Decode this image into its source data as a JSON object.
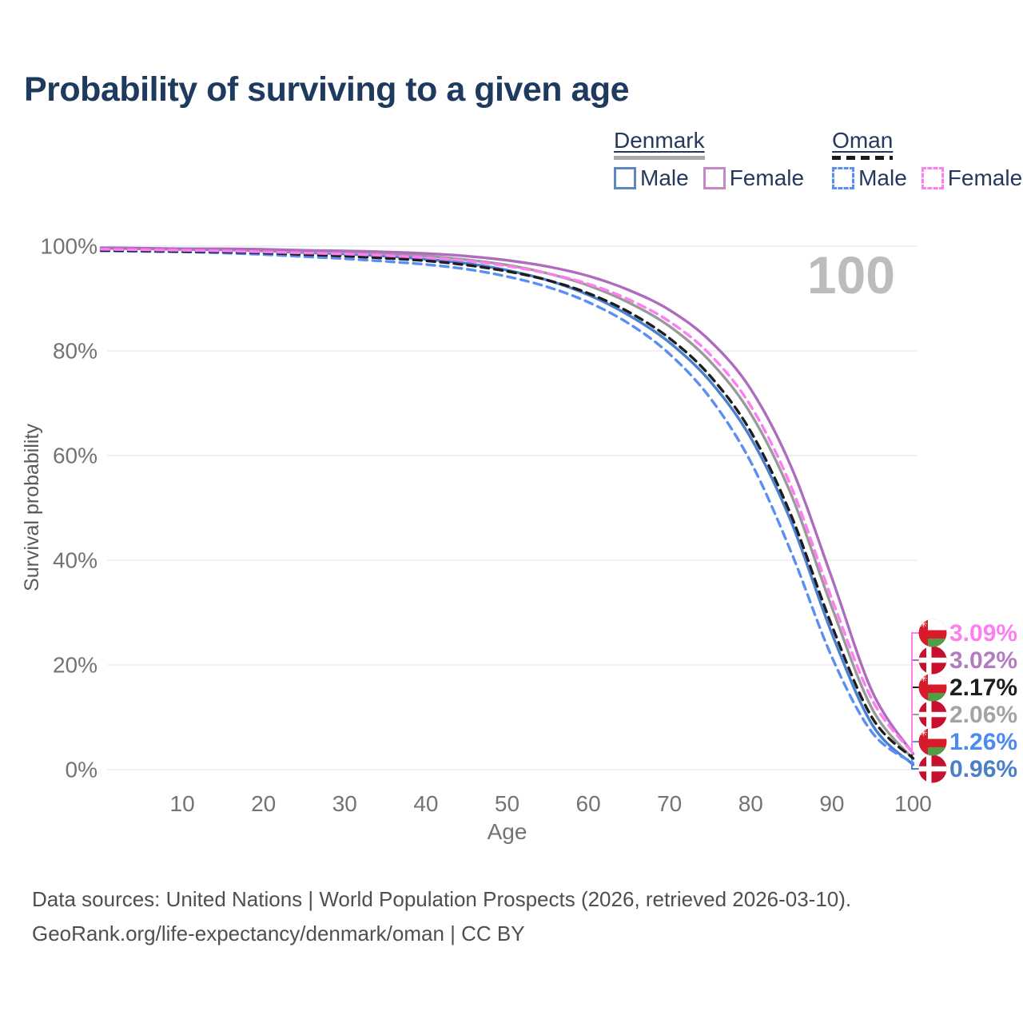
{
  "title": {
    "text": "Probability of surviving to a given age",
    "color": "#1e3a5f"
  },
  "legend": {
    "text_color": "#24395d",
    "groups": [
      {
        "name": "Denmark",
        "line_style": "solid",
        "line_color": "#a9a9ad",
        "items": [
          {
            "label": "Male",
            "color": "#5e87c2",
            "style": "solid"
          },
          {
            "label": "Female",
            "color": "#c488c4",
            "style": "solid"
          }
        ]
      },
      {
        "name": "Oman",
        "line_style": "dashed",
        "line_color": "#1c1c1c",
        "items": [
          {
            "label": "Male",
            "color": "#5b8ef3",
            "style": "dashed"
          },
          {
            "label": "Female",
            "color": "#ff7df2",
            "style": "dashed"
          }
        ]
      }
    ]
  },
  "chart_data": {
    "type": "line",
    "title": "Probability of surviving to a given age",
    "xlabel": "Age",
    "ylabel": "Survival probability",
    "xlim": [
      0,
      100
    ],
    "ylim": [
      0,
      100
    ],
    "grid": "horizontal-only",
    "grid_color": "#e8e8eb",
    "tick_color": "#737373",
    "axis_label_color": "#5a5a5a",
    "watermark": {
      "text": "100",
      "color": "#bcbcbc"
    },
    "x_ticks": [
      10,
      20,
      30,
      40,
      50,
      60,
      70,
      80,
      90,
      100
    ],
    "y_ticks_percent": [
      0,
      20,
      40,
      60,
      80,
      100
    ],
    "x": [
      0,
      5,
      10,
      15,
      20,
      25,
      30,
      35,
      40,
      45,
      50,
      55,
      60,
      65,
      70,
      75,
      80,
      85,
      90,
      95,
      100
    ],
    "series": [
      {
        "id": "denmark-male",
        "name": "Denmark Male",
        "country": "Denmark",
        "sex": "Male",
        "color": "#4a80cf",
        "label_color": "#4a7fc9",
        "dash": false,
        "flag": "denmark",
        "end_label": "0.96%",
        "end_value": 0.96,
        "values": [
          99.6,
          99.5,
          99.4,
          99.3,
          99.1,
          98.8,
          98.5,
          98.1,
          97.5,
          96.7,
          95.4,
          93.5,
          90.7,
          86.8,
          81.6,
          74.2,
          63.4,
          47.3,
          26.0,
          8.5,
          0.96
        ]
      },
      {
        "id": "denmark-all",
        "name": "Denmark",
        "country": "Denmark",
        "sex": "Both",
        "color": "#9a9a9a",
        "label_color": "#a3a3a3",
        "dash": false,
        "flag": "denmark",
        "end_label": "2.06%",
        "end_value": 2.06,
        "values": [
          99.6,
          99.5,
          99.5,
          99.4,
          99.2,
          99.0,
          98.8,
          98.5,
          98.1,
          97.4,
          96.4,
          94.8,
          92.5,
          89.2,
          84.7,
          78.0,
          68.0,
          52.5,
          31.0,
          11.5,
          2.06
        ]
      },
      {
        "id": "denmark-female",
        "name": "Denmark Female",
        "country": "Denmark",
        "sex": "Female",
        "color": "#ad6cbd",
        "label_color": "#b27cc0",
        "dash": false,
        "flag": "denmark",
        "end_label": "3.02%",
        "end_value": 3.02,
        "values": [
          99.7,
          99.6,
          99.5,
          99.5,
          99.4,
          99.2,
          99.1,
          98.9,
          98.6,
          98.1,
          97.3,
          96.1,
          94.3,
          91.6,
          87.8,
          81.9,
          72.7,
          57.8,
          36.6,
          14.8,
          3.02
        ]
      },
      {
        "id": "oman-male",
        "name": "Oman Male",
        "country": "Oman",
        "sex": "Male",
        "color": "#5b8ef3",
        "label_color": "#4b8af0",
        "dash": true,
        "flag": "oman",
        "end_label": "1.26%",
        "end_value": 1.26,
        "values": [
          99.1,
          99.0,
          98.9,
          98.7,
          98.4,
          98.0,
          97.6,
          97.1,
          96.5,
          95.6,
          94.2,
          92.2,
          89.3,
          85.2,
          79.4,
          71.0,
          58.8,
          41.5,
          21.5,
          7.0,
          1.26
        ]
      },
      {
        "id": "oman-all",
        "name": "Oman",
        "country": "Oman",
        "sex": "Both",
        "color": "#1e1e1e",
        "label_color": "#1e1e1e",
        "dash": true,
        "flag": "oman",
        "end_label": "2.17%",
        "end_value": 2.17,
        "values": [
          99.2,
          99.1,
          99.0,
          98.9,
          98.7,
          98.4,
          98.1,
          97.7,
          97.2,
          96.4,
          95.2,
          93.5,
          91.0,
          87.4,
          82.4,
          75.2,
          64.6,
          48.5,
          27.5,
          9.8,
          2.17
        ]
      },
      {
        "id": "oman-female",
        "name": "Oman Female",
        "country": "Oman",
        "sex": "Female",
        "color": "#ff7df2",
        "label_color": "#ff7df2",
        "dash": true,
        "flag": "oman",
        "end_label": "3.09%",
        "end_value": 3.09,
        "values": [
          99.4,
          99.3,
          99.2,
          99.1,
          98.9,
          98.7,
          98.5,
          98.2,
          97.8,
          97.2,
          96.2,
          94.8,
          92.8,
          89.8,
          85.6,
          79.3,
          69.5,
          54.0,
          32.6,
          13.2,
          3.09
        ]
      }
    ],
    "flag_colors": {
      "denmark_red": "#c8102e",
      "oman_red": "#d81b2a",
      "oman_green": "#4f9e45",
      "white": "#ffffff"
    }
  },
  "footer": {
    "line1": "Data sources: United Nations | World Population Prospects (2026, retrieved 2026-03-10).",
    "line2": "GeoRank.org/life-expectancy/denmark/oman | CC BY",
    "color": "#4f4f4f"
  }
}
